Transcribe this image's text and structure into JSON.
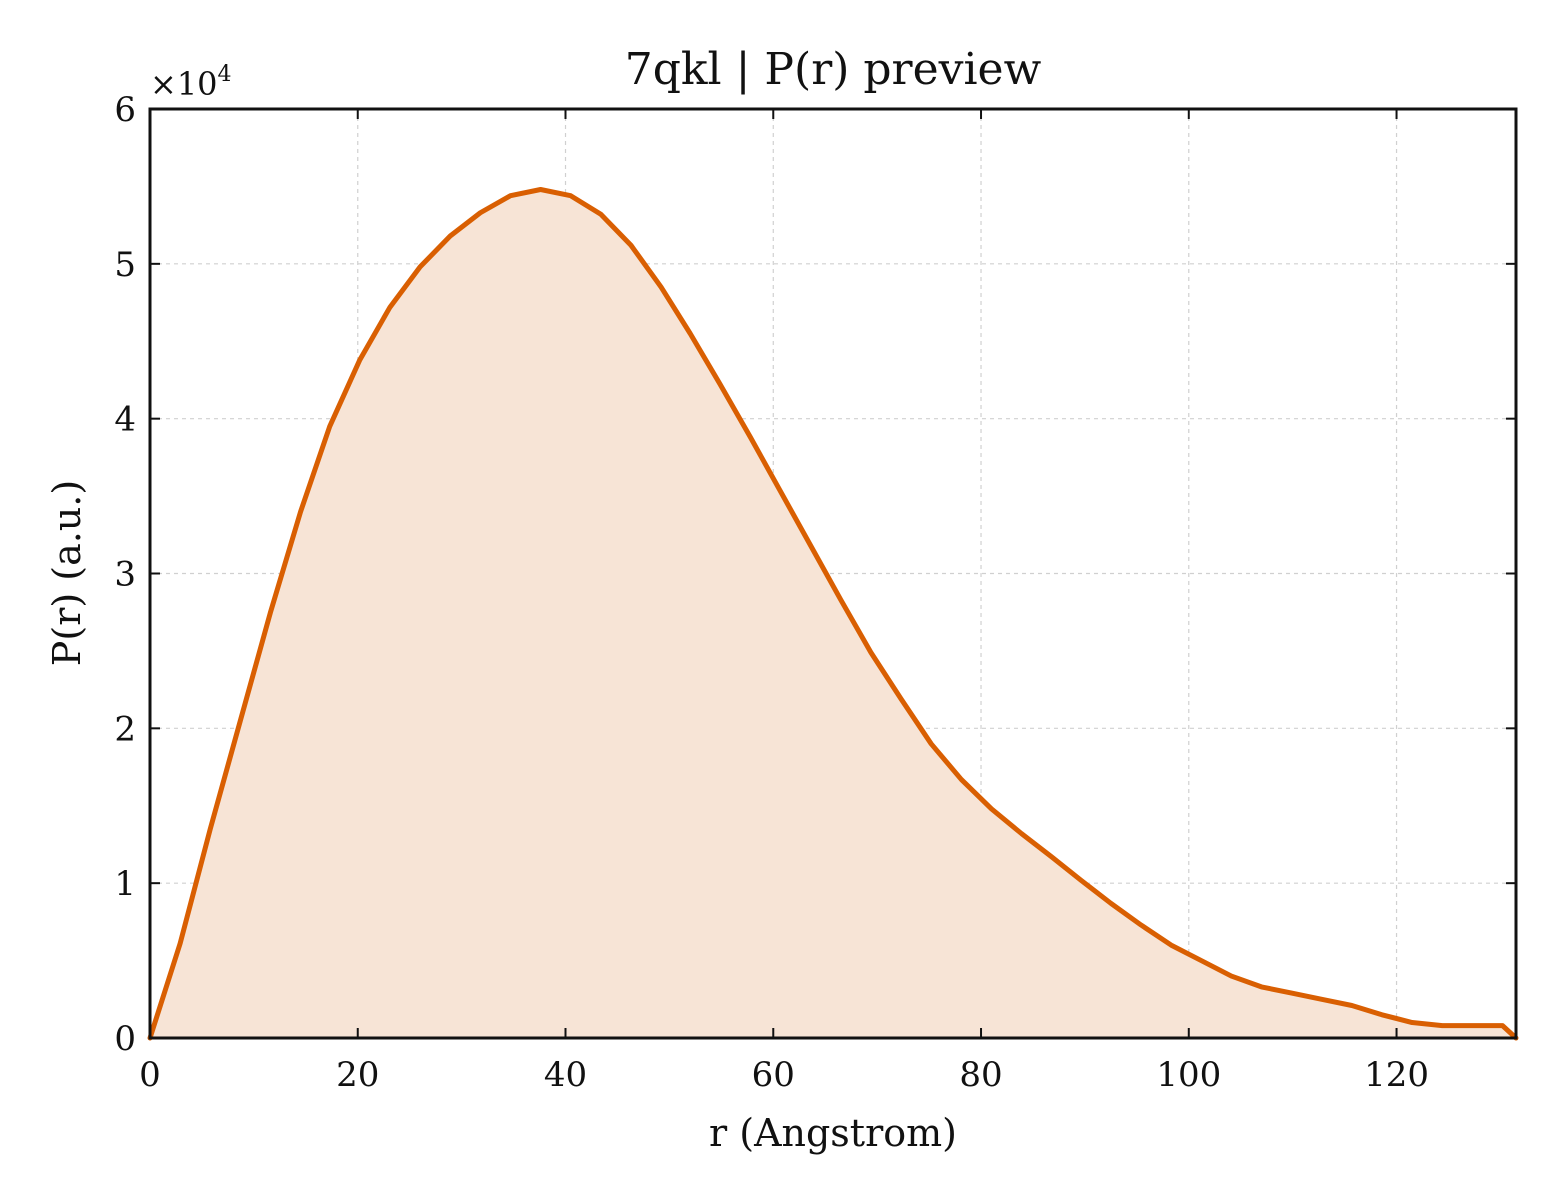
{
  "chart_data": {
    "type": "area",
    "title": "7qkl | P(r) preview",
    "xlabel": "r (Angstrom)",
    "ylabel": "P(r) (a.u.)",
    "y_multiplier_label": {
      "base": "×10",
      "exponent": "4"
    },
    "xlim": [
      0,
      131.5
    ],
    "ylim": [
      0,
      60000
    ],
    "x_ticks": [
      0,
      20,
      40,
      60,
      80,
      100,
      120
    ],
    "x_tick_labels": [
      "0",
      "20",
      "40",
      "60",
      "80",
      "100",
      "120"
    ],
    "y_ticks": [
      0,
      10000,
      20000,
      30000,
      40000,
      50000,
      60000
    ],
    "y_tick_labels": [
      "0",
      "1",
      "2",
      "3",
      "4",
      "5",
      "6"
    ],
    "grid": true,
    "colors": {
      "line": "#d95f02",
      "fill": "#f7e4d6"
    },
    "series": [
      {
        "x": [
          0,
          2.9,
          5.8,
          8.7,
          11.6,
          14.5,
          17.3,
          20.2,
          23.1,
          26.0,
          28.9,
          31.8,
          34.7,
          37.6,
          40.5,
          43.4,
          46.3,
          49.2,
          52.0,
          54.9,
          57.8,
          60.7,
          63.6,
          66.5,
          69.4,
          72.3,
          75.2,
          78.1,
          81.0,
          83.9,
          86.8,
          89.6,
          92.5,
          95.4,
          98.3,
          101.2,
          104.1,
          107.0,
          109.9,
          112.8,
          115.7,
          118.6,
          121.5,
          124.4,
          127.3,
          130.2,
          131.5
        ],
        "y": [
          0,
          6100,
          13500,
          20500,
          27500,
          34000,
          39500,
          43800,
          47200,
          49800,
          51800,
          53300,
          54400,
          54800,
          54400,
          53200,
          51200,
          48500,
          45500,
          42200,
          38800,
          35300,
          31800,
          28300,
          24900,
          21900,
          19000,
          16700,
          14800,
          13200,
          11700,
          10200,
          8700,
          7300,
          6000,
          5000,
          4000,
          3300,
          2900,
          2500,
          2100,
          1500,
          1000,
          800,
          800,
          800,
          0
        ]
      }
    ]
  }
}
